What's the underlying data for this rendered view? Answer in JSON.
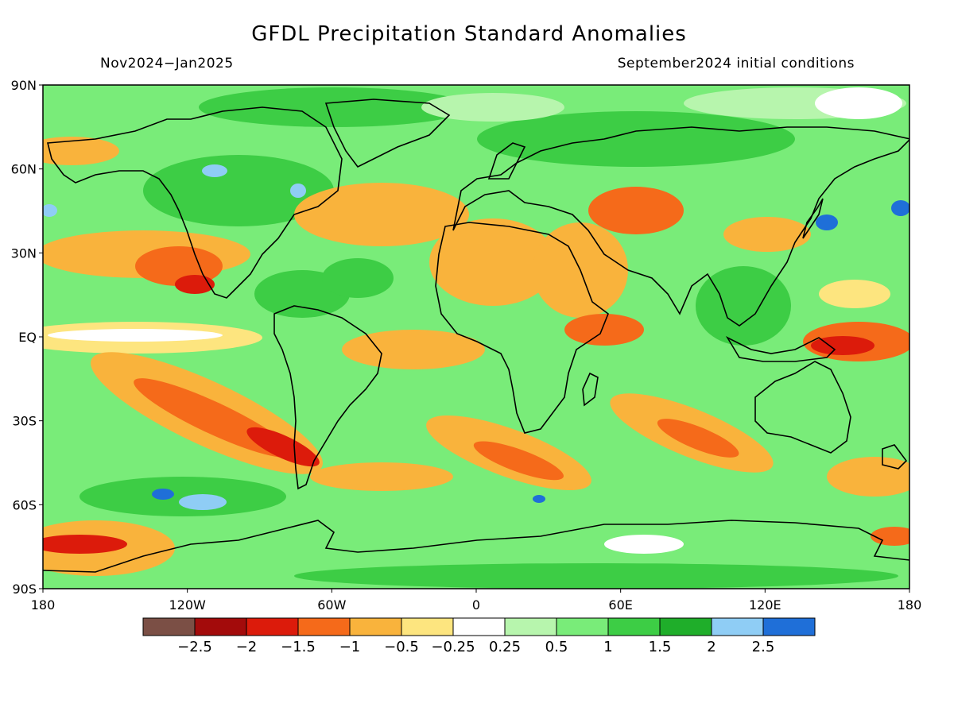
{
  "title": "GFDL Precipitation Standard Anomalies",
  "period": "Nov2024−Jan2025",
  "init_conditions": "September2024 initial conditions",
  "map": {
    "lat_labels": [
      "90N",
      "60N",
      "30N",
      "EQ",
      "30S",
      "60S",
      "90S"
    ],
    "lon_labels": [
      "180",
      "120W",
      "60W",
      "0",
      "60E",
      "120E",
      "180"
    ]
  },
  "colorbar": {
    "colors": [
      "#7b4f45",
      "#a30b0b",
      "#dc1b0b",
      "#f56a1a",
      "#f9b33c",
      "#fde57f",
      "#ffffff",
      "#b7f5ad",
      "#79ec79",
      "#3dcd45",
      "#1fae2a",
      "#8fcdf5",
      "#1f6fd8"
    ],
    "labels": [
      "−2.5",
      "−2",
      "−1.5",
      "−1",
      "−0.5",
      "−0.25",
      "0.25",
      "0.5",
      "1",
      "1.5",
      "2",
      "2.5"
    ]
  },
  "background": {
    "land_color": "#79ec79",
    "coastline_color": "#000000"
  }
}
